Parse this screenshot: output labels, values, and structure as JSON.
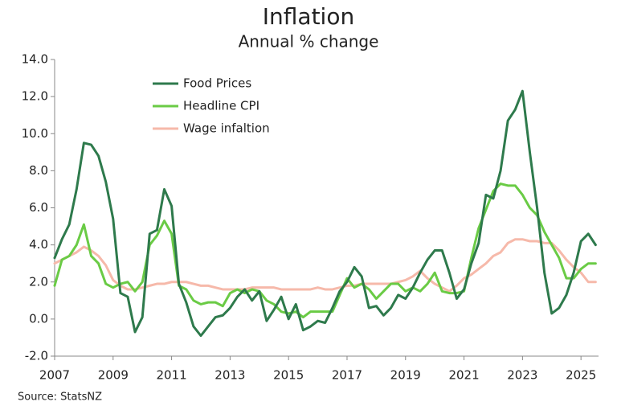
{
  "chart_data": {
    "type": "line",
    "title": "Inflation",
    "subtitle": "Annual % change",
    "source": "Source: StatsNZ",
    "x": [
      2007,
      2007.25,
      2007.5,
      2007.75,
      2008,
      2008.25,
      2008.5,
      2008.75,
      2009,
      2009.25,
      2009.5,
      2009.75,
      2010,
      2010.25,
      2010.5,
      2010.75,
      2011,
      2011.25,
      2011.5,
      2011.75,
      2012,
      2012.25,
      2012.5,
      2012.75,
      2013,
      2013.25,
      2013.5,
      2013.75,
      2014,
      2014.25,
      2014.5,
      2014.75,
      2015,
      2015.25,
      2015.5,
      2015.75,
      2016,
      2016.25,
      2016.5,
      2016.75,
      2017,
      2017.25,
      2017.5,
      2017.75,
      2018,
      2018.25,
      2018.5,
      2018.75,
      2019,
      2019.25,
      2019.5,
      2019.75,
      2020,
      2020.25,
      2020.5,
      2020.75,
      2021,
      2021.25,
      2021.5,
      2021.75,
      2022,
      2022.25,
      2022.5,
      2022.75,
      2023,
      2023.25,
      2023.5,
      2023.75,
      2024,
      2024.25,
      2024.5,
      2024.75,
      2025,
      2025.25,
      2025.5
    ],
    "series": [
      {
        "name": "Food Prices",
        "color": "#2e7a4c",
        "values": [
          3.3,
          4.3,
          5.1,
          7.0,
          9.5,
          9.4,
          8.8,
          7.4,
          5.4,
          1.4,
          1.2,
          -0.7,
          0.1,
          4.6,
          4.8,
          7.0,
          6.1,
          1.9,
          0.9,
          -0.4,
          -0.9,
          -0.4,
          0.1,
          0.2,
          0.6,
          1.2,
          1.6,
          1.0,
          1.5,
          -0.1,
          0.5,
          1.2,
          0.0,
          0.8,
          -0.6,
          -0.4,
          -0.1,
          -0.2,
          0.6,
          1.5,
          2.0,
          2.8,
          2.3,
          0.6,
          0.7,
          0.2,
          0.6,
          1.3,
          1.1,
          1.7,
          2.5,
          3.2,
          3.7,
          3.7,
          2.5,
          1.1,
          1.6,
          3.0,
          4.1,
          6.7,
          6.5,
          8.0,
          10.7,
          11.3,
          12.3,
          9.0,
          6.0,
          2.5,
          0.3,
          0.6,
          1.3,
          2.5,
          4.2,
          4.6,
          4.0
        ]
      },
      {
        "name": "Headline CPI",
        "color": "#6acb45",
        "values": [
          1.8,
          3.2,
          3.4,
          4.0,
          5.1,
          3.4,
          3.0,
          1.9,
          1.7,
          1.9,
          2.0,
          1.5,
          2.0,
          4.0,
          4.5,
          5.3,
          4.6,
          1.8,
          1.6,
          1.0,
          0.8,
          0.9,
          0.9,
          0.7,
          1.4,
          1.6,
          1.4,
          1.6,
          1.5,
          1.0,
          0.8,
          0.4,
          0.3,
          0.4,
          0.1,
          0.4,
          0.4,
          0.4,
          0.4,
          1.3,
          2.2,
          1.7,
          1.9,
          1.6,
          1.1,
          1.5,
          1.9,
          1.9,
          1.5,
          1.7,
          1.5,
          1.9,
          2.5,
          1.5,
          1.4,
          1.4,
          1.5,
          3.3,
          4.9,
          5.9,
          6.9,
          7.3,
          7.2,
          7.2,
          6.7,
          6.0,
          5.6,
          4.7,
          4.0,
          3.3,
          2.2,
          2.2,
          2.7,
          3.0,
          3.0
        ]
      },
      {
        "name": "Wage infaltion",
        "color": "#f6b9aa",
        "values": [
          3.0,
          3.2,
          3.4,
          3.6,
          3.9,
          3.7,
          3.4,
          2.9,
          2.1,
          1.8,
          1.6,
          1.6,
          1.7,
          1.8,
          1.9,
          1.9,
          2.0,
          2.0,
          2.0,
          1.9,
          1.8,
          1.8,
          1.7,
          1.6,
          1.6,
          1.6,
          1.6,
          1.7,
          1.7,
          1.7,
          1.7,
          1.6,
          1.6,
          1.6,
          1.6,
          1.6,
          1.7,
          1.6,
          1.6,
          1.7,
          1.8,
          1.8,
          1.9,
          1.9,
          1.9,
          1.9,
          1.9,
          2.0,
          2.1,
          2.3,
          2.6,
          2.2,
          1.9,
          1.7,
          1.5,
          1.8,
          2.2,
          2.4,
          2.7,
          3.0,
          3.4,
          3.6,
          4.1,
          4.3,
          4.3,
          4.2,
          4.2,
          4.1,
          4.1,
          3.7,
          3.2,
          2.8,
          2.5,
          2.0,
          2.0
        ]
      }
    ],
    "xlim": [
      2007,
      2025.6
    ],
    "xticks": [
      2007,
      2009,
      2011,
      2013,
      2015,
      2017,
      2019,
      2021,
      2023,
      2025
    ],
    "ylim": [
      -2,
      14
    ],
    "yticks": [
      {
        "value": -2,
        "label": "-2.0"
      },
      {
        "value": 0,
        "label": "0.0"
      },
      {
        "value": 2,
        "label": "2.0"
      },
      {
        "value": 4,
        "label": "4.0"
      },
      {
        "value": 6,
        "label": "6.0"
      },
      {
        "value": 8,
        "label": "8.0"
      },
      {
        "value": 10,
        "label": "10.0"
      },
      {
        "value": 12,
        "label": "12.0"
      },
      {
        "value": 14,
        "label": "14.0"
      }
    ],
    "grid": false,
    "legend": "top-left"
  }
}
